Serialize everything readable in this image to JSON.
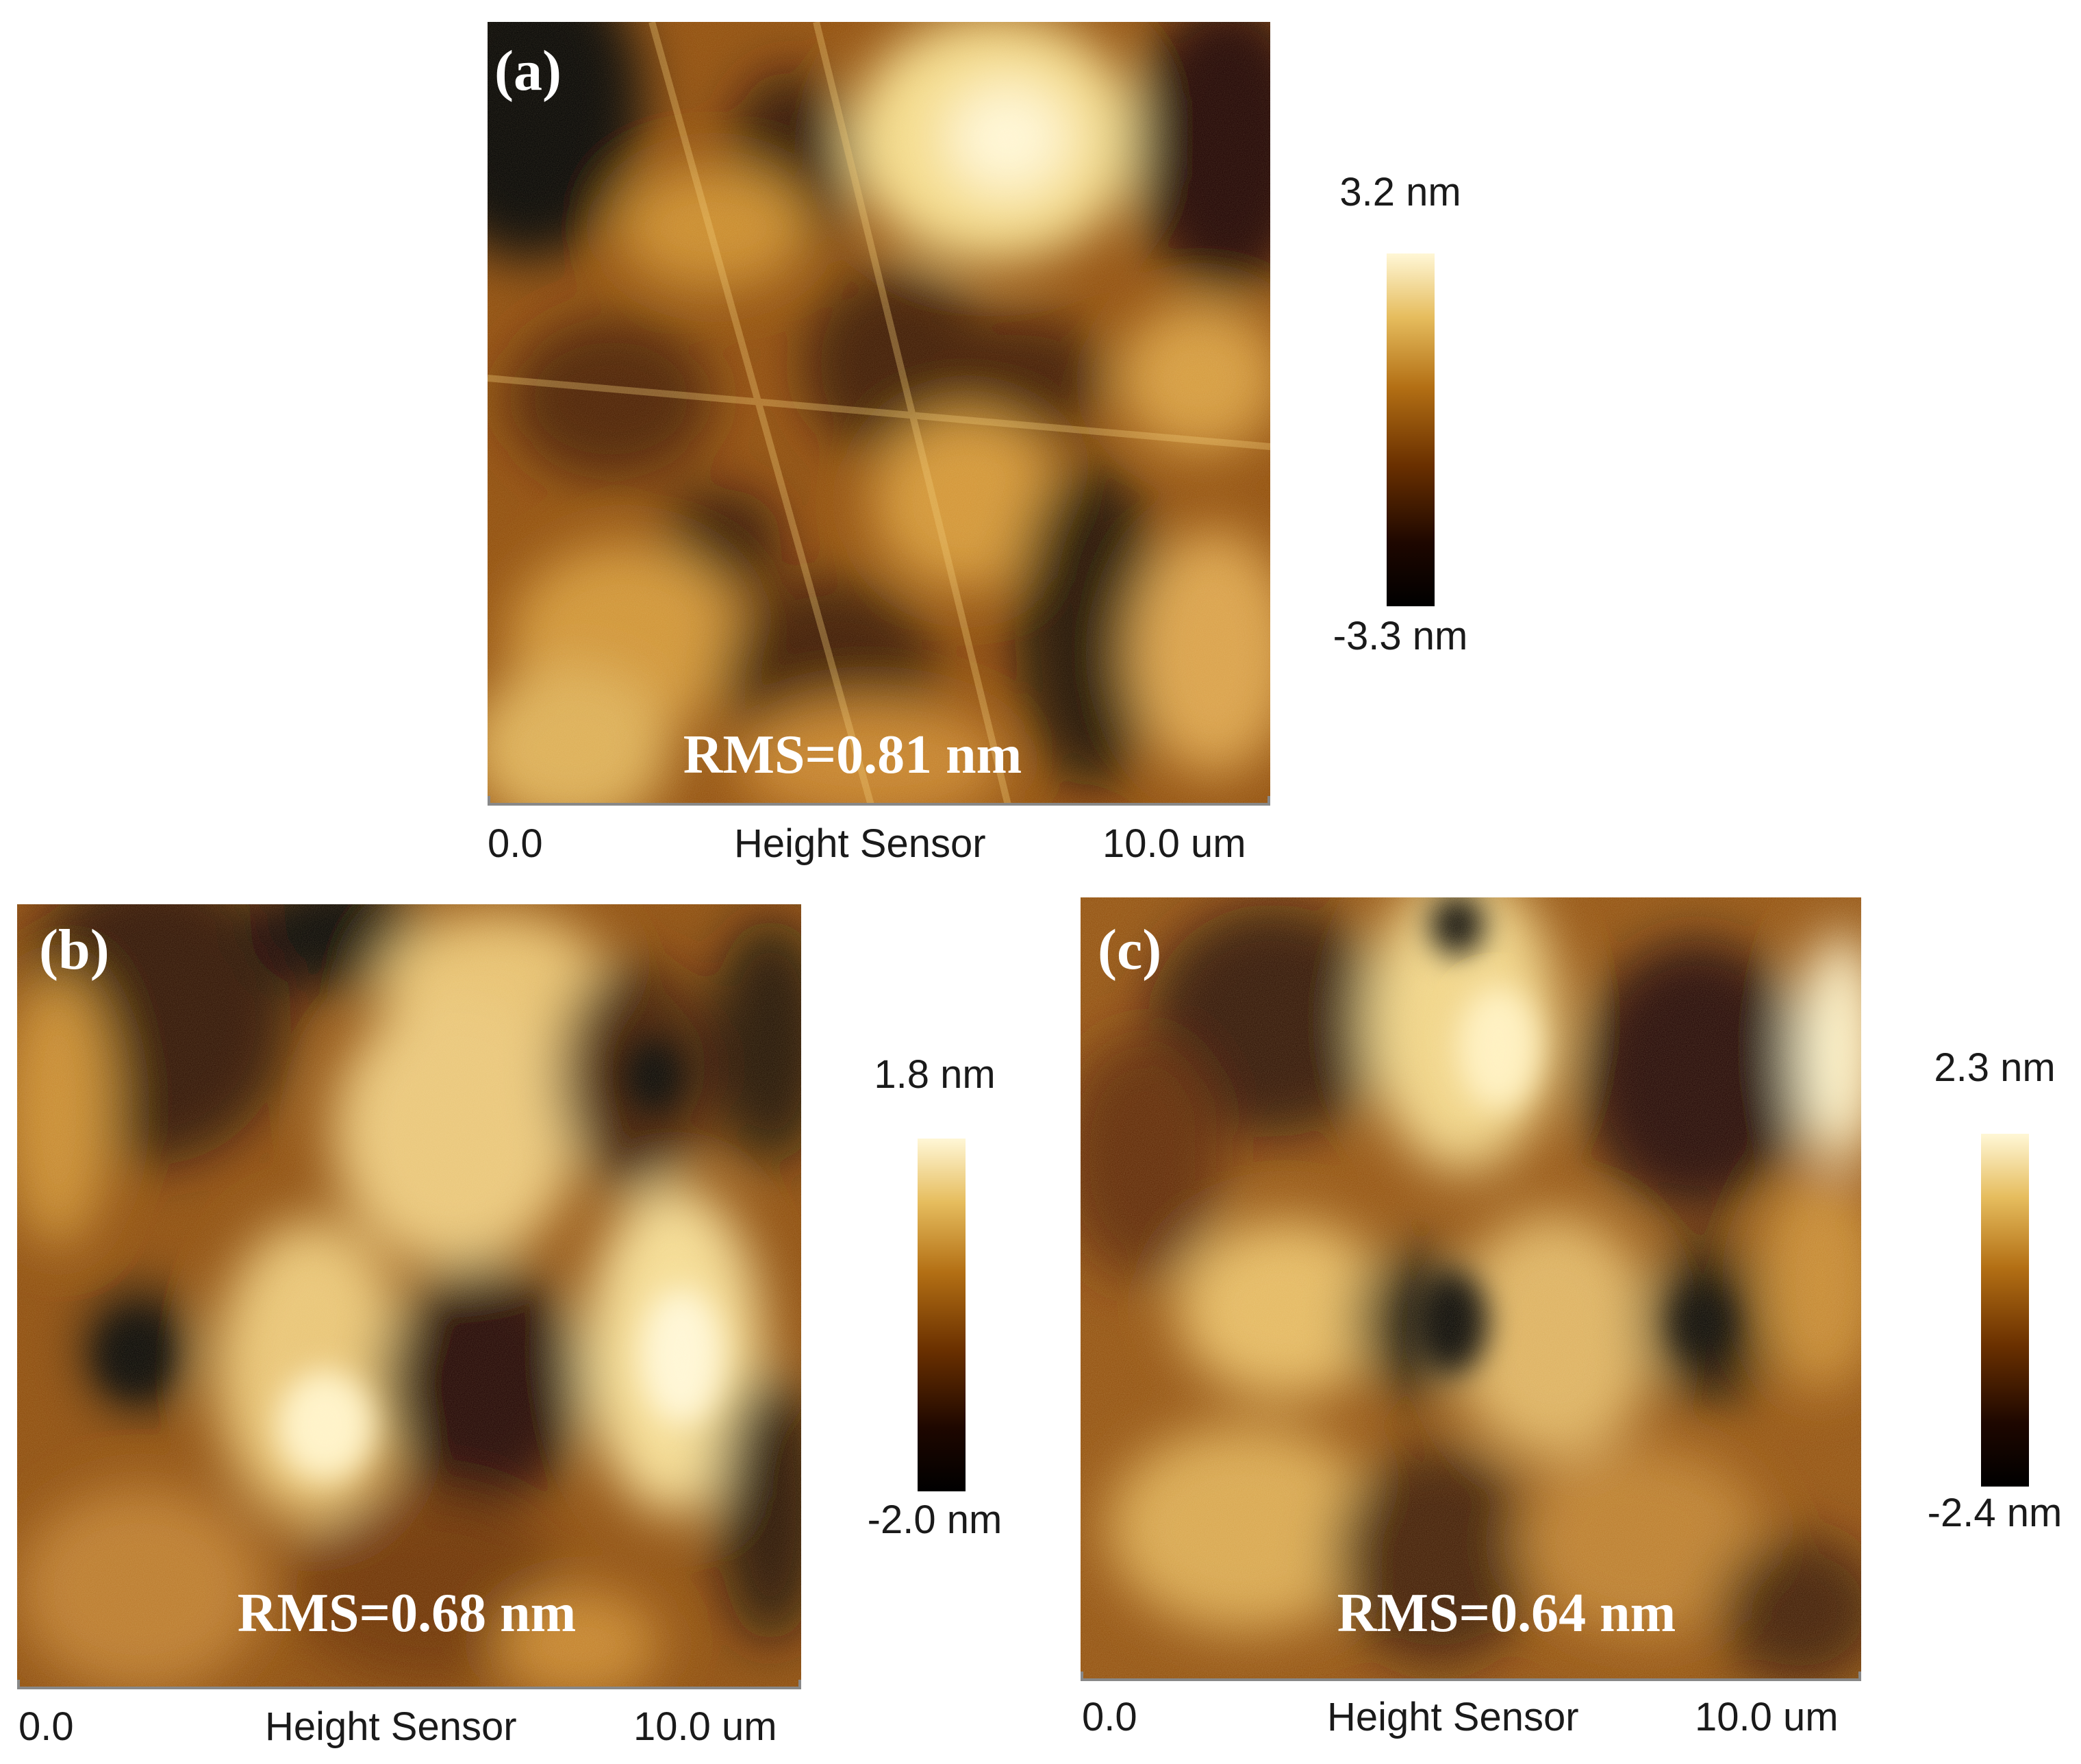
{
  "colorscale": [
    "#000000",
    "#3a1100",
    "#8a4300",
    "#c88a2a",
    "#f2d47d",
    "#fffbe0"
  ],
  "panels": [
    {
      "id": "a",
      "label": "(a)",
      "rms": "RMS=0.81 nm",
      "axis_start": "0.0",
      "axis_title": "Height Sensor",
      "axis_end": "10.0 um",
      "scale_max": "3.2 nm",
      "scale_min": "-3.3 nm"
    },
    {
      "id": "b",
      "label": "(b)",
      "rms": "RMS=0.68 nm",
      "axis_start": "0.0",
      "axis_title": "Height Sensor",
      "axis_end": "10.0 um",
      "scale_max": "1.8 nm",
      "scale_min": "-2.0 nm"
    },
    {
      "id": "c",
      "label": "(c)",
      "rms": "RMS=0.64 nm",
      "axis_start": "0.0",
      "axis_title": "Height Sensor",
      "axis_end": "10.0 um",
      "scale_max": "2.3 nm",
      "scale_min": "-2.4 nm"
    }
  ]
}
